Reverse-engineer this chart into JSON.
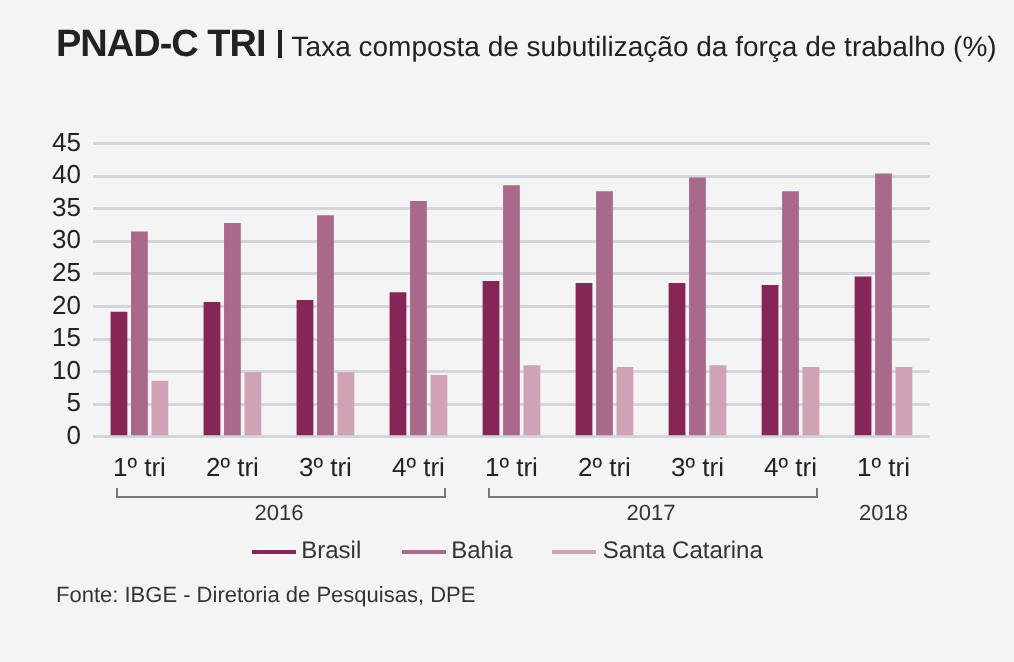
{
  "chart_data": {
    "type": "bar",
    "title": "PNAD-C TRI",
    "subtitle": "Taxa composta de subutilização da força de trabalho (%)",
    "categories": [
      "1º tri",
      "2º tri",
      "3º tri",
      "4º tri",
      "1º tri",
      "2º tri",
      "3º tri",
      "4º tri",
      "1º tri"
    ],
    "series": [
      {
        "name": "Brasil",
        "color": "#862657",
        "values": [
          19.2,
          20.7,
          21.0,
          22.2,
          23.9,
          23.6,
          23.6,
          23.3,
          24.6
        ]
      },
      {
        "name": "Bahia",
        "color": "#a8698a",
        "values": [
          31.5,
          32.8,
          34.0,
          36.2,
          38.6,
          37.7,
          39.8,
          37.7,
          40.4
        ]
      },
      {
        "name": "Santa Catarina",
        "color": "#cfa2b5",
        "values": [
          8.6,
          9.9,
          9.9,
          9.5,
          11.0,
          10.7,
          11.0,
          10.7,
          10.7
        ]
      }
    ],
    "ylim": [
      0,
      45
    ],
    "yticks": [
      0,
      5,
      10,
      15,
      20,
      25,
      30,
      35,
      40,
      45
    ],
    "grid": "y",
    "legend": "bottom",
    "annotations": [
      "2016",
      "2017",
      "2018",
      "Fonte: IBGE - Diretoria de Pesquisas, DPE"
    ]
  }
}
